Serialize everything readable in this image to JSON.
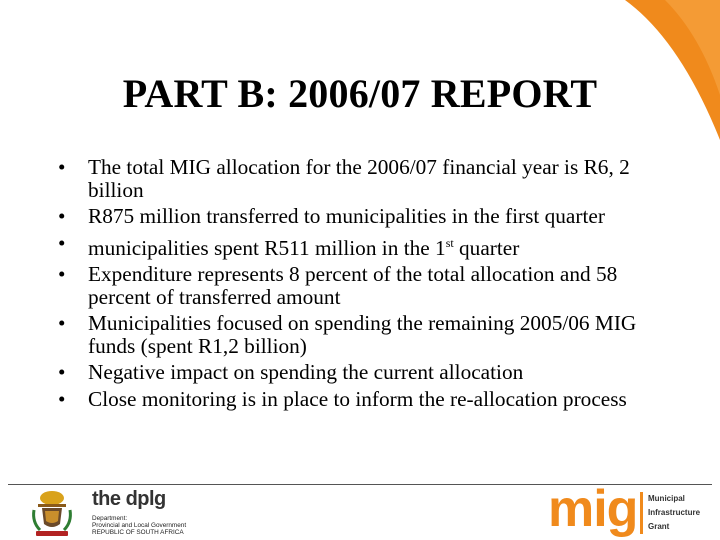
{
  "slide": {
    "title": "PART B: 2006/07 REPORT",
    "bullet_symbol": "•",
    "bullets": [
      "The total MIG allocation for the 2006/07 financial year is R6, 2 billion",
      "R875 million transferred to municipalities in the first quarter",
      "municipalities spent R511 million in the 1",
      "Expenditure represents 8 percent of the total allocation and 58 percent of transferred amount",
      "Municipalities focused on spending the remaining 2005/06 MIG funds (spent R1,2 billion)",
      "Negative impact on spending the current allocation",
      "Close monitoring is in place to inform the re-allocation process"
    ],
    "bullet3_superscript": "st",
    "bullet3_tail": " quarter"
  },
  "footer": {
    "dplg": {
      "the": "the ",
      "name": "dplg",
      "line1": "Department:",
      "line2": "Provincial and Local Government",
      "line3": "REPUBLIC OF SOUTH AFRICA"
    },
    "mig": {
      "word": "mig",
      "line1": "Municipal",
      "line2": "Infrastructure",
      "line3": "Grant"
    }
  },
  "colors": {
    "accent_orange": "#f08a1c",
    "text": "#000000"
  }
}
